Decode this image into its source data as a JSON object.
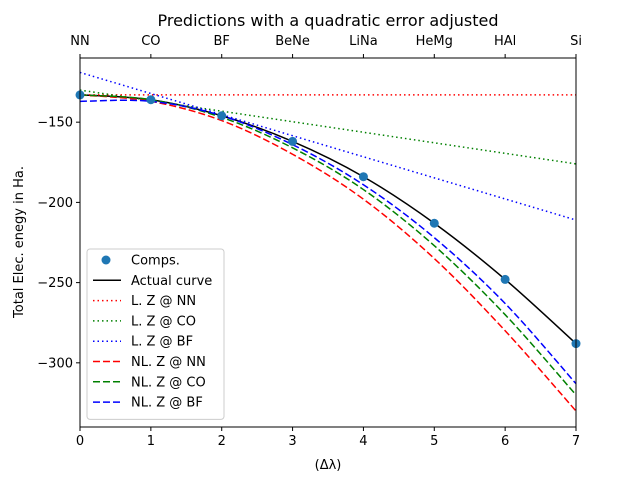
{
  "chart_data": {
    "type": "line",
    "title": "Predictions with a quadratic error adjusted",
    "xlabel": "(Δλ)",
    "ylabel": "Total Elec. enegy in Ha.",
    "xlim": [
      0,
      7
    ],
    "ylim": [
      -340,
      -110
    ],
    "x_ticks": [
      "0",
      "1",
      "2",
      "3",
      "4",
      "5",
      "6",
      "7"
    ],
    "y_ticks": [
      {
        "value": -150,
        "label": "−150"
      },
      {
        "value": -200,
        "label": "−200"
      },
      {
        "value": -250,
        "label": "−250"
      },
      {
        "value": -300,
        "label": "−300"
      }
    ],
    "top_axis_labels": [
      "NN",
      "CO",
      "BF",
      "BeNe",
      "LiNa",
      "HeMg",
      "HAl",
      "Si"
    ],
    "grid": false,
    "legend_position": "lower-left",
    "points": {
      "name": "Comps.",
      "color": "#1f77b4",
      "x": [
        0,
        1,
        2,
        3,
        4,
        5,
        6,
        7
      ],
      "y": [
        -133,
        -136,
        -146,
        -162,
        -184,
        -213,
        -248,
        -288
      ]
    },
    "series": [
      {
        "name": "Actual curve",
        "color": "#000000",
        "style": "solid",
        "x": [
          0,
          1,
          2,
          3,
          4,
          5,
          6,
          7
        ],
        "y": [
          -133,
          -136,
          -146,
          -162,
          -184,
          -213,
          -248,
          -288
        ]
      },
      {
        "name": "L. Z @ NN",
        "color": "#ff0000",
        "style": "dotted",
        "x": [
          0,
          7
        ],
        "y": [
          -133,
          -133
        ]
      },
      {
        "name": "L. Z @ CO",
        "color": "#008000",
        "style": "dotted",
        "x": [
          0,
          7
        ],
        "y": [
          -130,
          -176
        ]
      },
      {
        "name": "L. Z @ BF",
        "color": "#0000ff",
        "style": "dotted",
        "x": [
          0,
          7
        ],
        "y": [
          -119,
          -211
        ]
      },
      {
        "name": "NL. Z @ NN",
        "color": "#ff0000",
        "style": "dashed",
        "x": [
          0,
          1,
          2,
          3,
          4,
          5,
          6,
          7
        ],
        "y": [
          -133,
          -137,
          -149,
          -170,
          -198,
          -235,
          -280,
          -330
        ]
      },
      {
        "name": "NL. Z @ CO",
        "color": "#008000",
        "style": "dashed",
        "x": [
          0,
          1,
          2,
          3,
          4,
          5,
          6,
          7
        ],
        "y": [
          -133,
          -136,
          -147,
          -166,
          -192,
          -227,
          -270,
          -320
        ]
      },
      {
        "name": "NL. Z @ BF",
        "color": "#0000ff",
        "style": "dashed",
        "x": [
          0,
          1,
          2,
          3,
          4,
          5,
          6,
          7
        ],
        "y": [
          -137,
          -137,
          -146,
          -164,
          -189,
          -222,
          -263,
          -313
        ]
      }
    ]
  }
}
